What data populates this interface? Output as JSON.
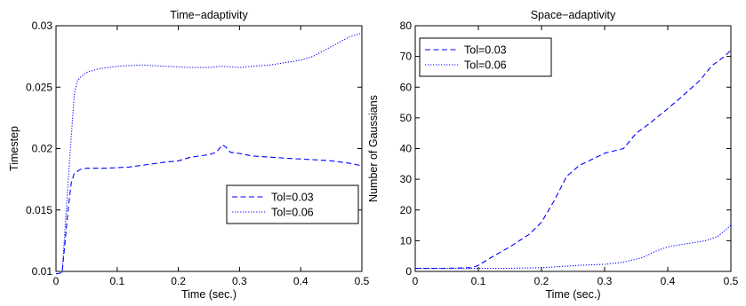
{
  "chart_data": [
    {
      "type": "line",
      "title": "Time−adaptivity",
      "xlabel": "Time (sec.)",
      "ylabel": "Timestep",
      "xlim": [
        0,
        0.5
      ],
      "ylim": [
        0.01,
        0.03
      ],
      "xticks": [
        0,
        0.1,
        0.2,
        0.3,
        0.4,
        0.5
      ],
      "xtick_labels": [
        "0",
        "0.1",
        "0.2",
        "0.3",
        "0.4",
        "0.5"
      ],
      "yticks": [
        0.01,
        0.015,
        0.02,
        0.025,
        0.03
      ],
      "ytick_labels": [
        "0.01",
        "0.015",
        "0.02",
        "0.025",
        "0.03"
      ],
      "grid": false,
      "legend": "lower-right",
      "series": [
        {
          "name": "Tol=0.03",
          "color": "#0000ff",
          "style": "dashed",
          "x": [
            0.0,
            0.01,
            0.02,
            0.025,
            0.03,
            0.04,
            0.05,
            0.08,
            0.12,
            0.15,
            0.18,
            0.2,
            0.22,
            0.25,
            0.262,
            0.272,
            0.278,
            0.285,
            0.3,
            0.32,
            0.35,
            0.38,
            0.42,
            0.45,
            0.48,
            0.5
          ],
          "values": [
            0.0098,
            0.0099,
            0.0152,
            0.0172,
            0.018,
            0.0183,
            0.0184,
            0.0184,
            0.0185,
            0.0187,
            0.0189,
            0.019,
            0.0193,
            0.0195,
            0.0197,
            0.0203,
            0.0201,
            0.0197,
            0.0196,
            0.0194,
            0.0193,
            0.0192,
            0.0191,
            0.019,
            0.0188,
            0.0186
          ]
        },
        {
          "name": "Tol=0.06",
          "color": "#0000ff",
          "style": "dotted",
          "x": [
            0.01,
            0.02,
            0.03,
            0.035,
            0.04,
            0.05,
            0.07,
            0.1,
            0.14,
            0.18,
            0.22,
            0.25,
            0.27,
            0.3,
            0.32,
            0.35,
            0.4,
            0.42,
            0.45,
            0.48,
            0.5
          ],
          "values": [
            0.0099,
            0.0175,
            0.0245,
            0.0255,
            0.0258,
            0.0262,
            0.0265,
            0.0267,
            0.0268,
            0.0267,
            0.0266,
            0.0266,
            0.0267,
            0.0266,
            0.0267,
            0.0268,
            0.0272,
            0.0275,
            0.0283,
            0.0291,
            0.0294
          ]
        }
      ]
    },
    {
      "type": "line",
      "title": "Space−adaptivity",
      "xlabel": "Time (sec.)",
      "ylabel": "Number of Gaussians",
      "xlim": [
        0,
        0.5
      ],
      "ylim": [
        0,
        80
      ],
      "xticks": [
        0,
        0.1,
        0.2,
        0.3,
        0.4,
        0.5
      ],
      "xtick_labels": [
        "0",
        "0.1",
        "0.2",
        "0.3",
        "0.4",
        "0.5"
      ],
      "yticks": [
        0,
        10,
        20,
        30,
        40,
        50,
        60,
        70,
        80
      ],
      "ytick_labels": [
        "0",
        "10",
        "20",
        "30",
        "40",
        "50",
        "60",
        "70",
        "80"
      ],
      "grid": false,
      "legend": "top-left",
      "series": [
        {
          "name": "Tol=0.03",
          "color": "#0000ff",
          "style": "dashed",
          "x": [
            0.0,
            0.05,
            0.09,
            0.1,
            0.12,
            0.15,
            0.18,
            0.2,
            0.22,
            0.24,
            0.26,
            0.28,
            0.3,
            0.33,
            0.35,
            0.37,
            0.4,
            0.42,
            0.45,
            0.47,
            0.49,
            0.5
          ],
          "values": [
            1,
            1,
            1.2,
            2,
            4.5,
            8,
            12,
            16,
            23,
            31,
            34.5,
            36.5,
            38.5,
            40,
            45,
            48,
            53,
            56.5,
            62,
            67,
            70,
            72
          ]
        },
        {
          "name": "Tol=0.06",
          "color": "#0000ff",
          "style": "dotted",
          "x": [
            0.0,
            0.1,
            0.15,
            0.2,
            0.23,
            0.26,
            0.3,
            0.33,
            0.36,
            0.38,
            0.4,
            0.43,
            0.46,
            0.48,
            0.5
          ],
          "values": [
            1,
            1,
            1,
            1.2,
            1.6,
            2,
            2.3,
            3,
            4.5,
            6.5,
            8,
            9,
            10,
            11.5,
            15
          ]
        }
      ]
    }
  ]
}
